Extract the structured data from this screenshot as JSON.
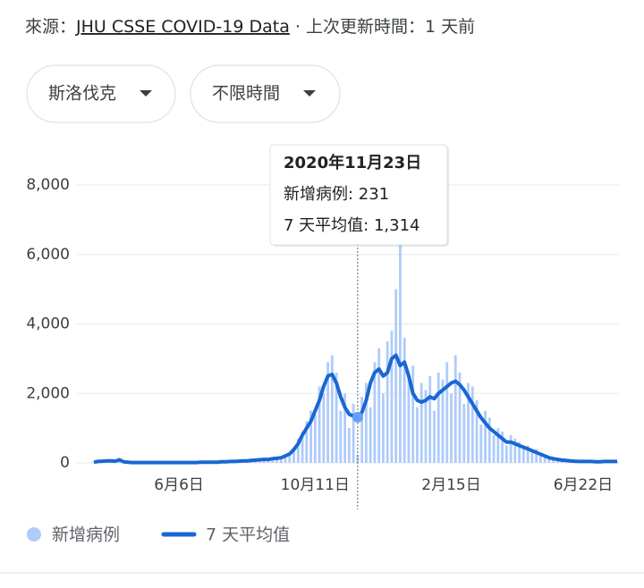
{
  "header": {
    "source_label": "來源：",
    "source_link": "JHU CSSE COVID-19 Data",
    "updated": " · 上次更新時間：1 天前"
  },
  "filters": [
    "斯洛伐克",
    "不限時間"
  ],
  "tooltip": {
    "title": "2020年11月23日",
    "lines": [
      "新增病例: 231",
      "7 天平均值: 1,314"
    ]
  },
  "chart_data": {
    "type": "bar+line",
    "categories": [
      null,
      null,
      null,
      null,
      null,
      null,
      null,
      null,
      null,
      null,
      null,
      null,
      null,
      null,
      null,
      null,
      null,
      null,
      null,
      null,
      "6月6日",
      null,
      null,
      null,
      null,
      null,
      null,
      null,
      null,
      null,
      null,
      null,
      null,
      null,
      null,
      null,
      null,
      null,
      null,
      null,
      null,
      null,
      null,
      null,
      null,
      null,
      null,
      null,
      null,
      null,
      null,
      null,
      "10月11日",
      null,
      null,
      null,
      null,
      null,
      null,
      null,
      null,
      null,
      null,
      null,
      null,
      null,
      null,
      null,
      null,
      null,
      null,
      null,
      null,
      null,
      null,
      null,
      null,
      null,
      null,
      null,
      null,
      null,
      null,
      null,
      "2月15日",
      null,
      null,
      null,
      null,
      null,
      null,
      null,
      null,
      null,
      null,
      null,
      null,
      null,
      null,
      null,
      null,
      null,
      null,
      null,
      null,
      null,
      null,
      null,
      null,
      null,
      null,
      null,
      null,
      null,
      null,
      "6月22日",
      null,
      null,
      null,
      null,
      null,
      null,
      null,
      null
    ],
    "series": [
      {
        "name": "新增病例",
        "type": "bar",
        "color": "#aecbfa",
        "values": [
          30,
          60,
          40,
          90,
          50,
          40,
          100,
          20,
          30,
          10,
          10,
          20,
          5,
          10,
          15,
          10,
          5,
          10,
          20,
          10,
          10,
          15,
          5,
          10,
          20,
          30,
          10,
          25,
          20,
          30,
          40,
          20,
          50,
          30,
          60,
          70,
          50,
          90,
          60,
          110,
          120,
          90,
          150,
          110,
          180,
          250,
          210,
          450,
          700,
          900,
          1200,
          1500,
          1400,
          2200,
          2000,
          2900,
          3100,
          2600,
          1500,
          2000,
          1000,
          1700,
          231,
          1900,
          2300,
          1600,
          2900,
          3300,
          2000,
          3500,
          3800,
          5000,
          6300,
          3600,
          2400,
          2800,
          1600,
          2300,
          2100,
          2500,
          1500,
          2600,
          2400,
          2900,
          2000,
          3100,
          2600,
          1700,
          2300,
          2200,
          1800,
          1100,
          1500,
          1300,
          800,
          1000,
          900,
          500,
          800,
          700,
          600,
          400,
          500,
          300,
          400,
          200,
          250,
          150,
          170,
          80,
          100,
          60,
          80,
          40,
          60,
          30,
          50,
          40,
          30,
          20,
          50,
          30,
          40,
          30
        ]
      },
      {
        "name": "7 天平均值",
        "type": "line",
        "color": "#1967d2",
        "values": [
          20,
          40,
          50,
          60,
          60,
          50,
          90,
          30,
          20,
          10,
          10,
          10,
          10,
          10,
          10,
          10,
          10,
          10,
          10,
          10,
          10,
          10,
          10,
          10,
          10,
          20,
          20,
          20,
          20,
          20,
          30,
          30,
          40,
          40,
          50,
          60,
          60,
          70,
          80,
          90,
          100,
          100,
          120,
          130,
          150,
          200,
          260,
          380,
          550,
          800,
          1000,
          1200,
          1500,
          1800,
          2200,
          2500,
          2550,
          2300,
          1900,
          1600,
          1400,
          1350,
          1314,
          1450,
          1800,
          2300,
          2600,
          2700,
          2500,
          2600,
          3000,
          3100,
          2800,
          2900,
          2500,
          2000,
          1800,
          1750,
          1800,
          1900,
          1850,
          2000,
          2100,
          2200,
          2300,
          2350,
          2250,
          2100,
          1900,
          1700,
          1500,
          1300,
          1150,
          1000,
          900,
          800,
          700,
          600,
          600,
          550,
          500,
          450,
          400,
          350,
          300,
          250,
          200,
          150,
          120,
          100,
          80,
          70,
          60,
          50,
          40,
          40,
          40,
          40,
          30,
          30,
          40,
          40,
          40,
          40
        ]
      }
    ],
    "ylim": [
      0,
      8000
    ],
    "yticks": [
      0,
      {
        "value": 2000,
        "label": "2,000"
      },
      {
        "value": 4000,
        "label": "4,000"
      },
      {
        "value": 6000,
        "label": "6,000"
      },
      {
        "value": 8000,
        "label": "8,000"
      }
    ],
    "grid": true
  }
}
